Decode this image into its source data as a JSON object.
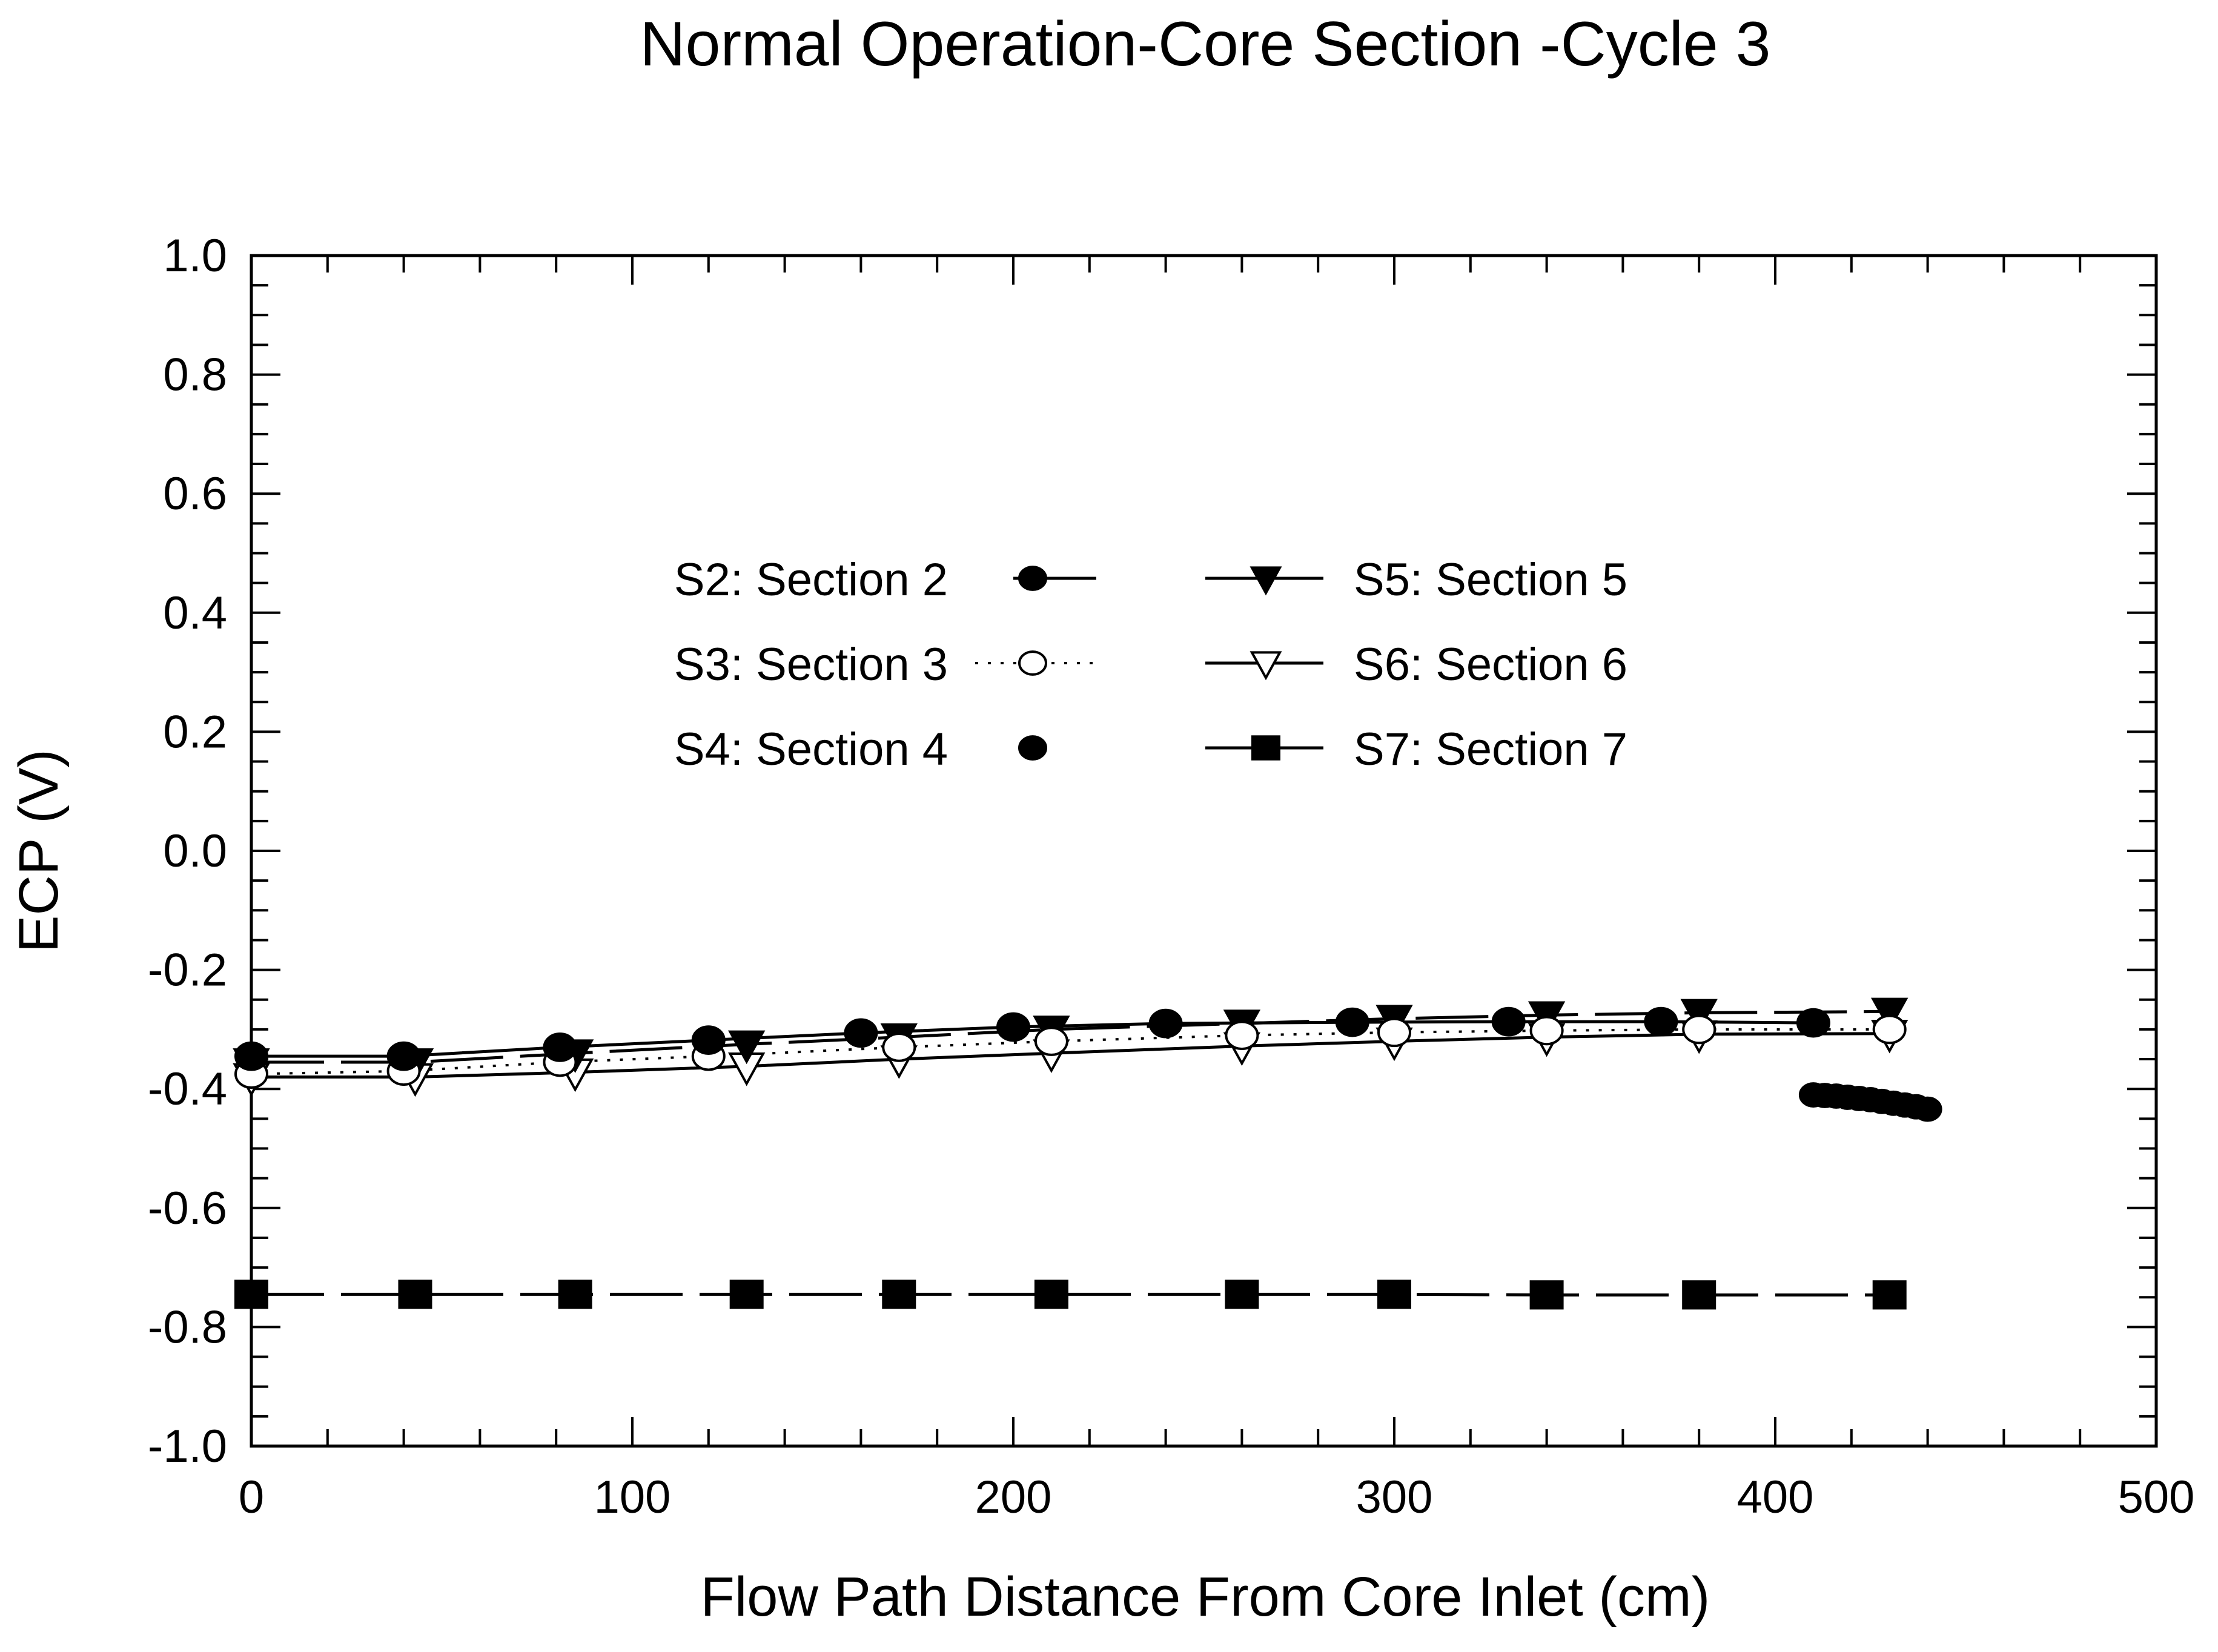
{
  "chart_data": {
    "type": "line",
    "title": "Normal Operation-Core Section -Cycle 3",
    "xlabel": "Flow Path Distance From Core Inlet (cm)",
    "ylabel": "ECP (V)",
    "xlim": [
      0,
      500
    ],
    "ylim": [
      -1.0,
      1.0
    ],
    "xticks": [
      0,
      100,
      200,
      300,
      400,
      500
    ],
    "xtick_labels": [
      "0",
      "100",
      "200",
      "300",
      "400",
      "500"
    ],
    "yticks": [
      1.0,
      0.8,
      0.6,
      0.4,
      0.2,
      0.0,
      -0.2,
      -0.4,
      -0.6,
      -0.8,
      -1.0
    ],
    "ytick_labels": [
      "1.0",
      "0.8",
      "0.6",
      "0.4",
      "0.2",
      "0.0",
      "-0.2",
      "-0.4",
      "-0.6",
      "-0.8",
      "-1.0"
    ],
    "grid": false,
    "legend_position": "upper-center",
    "series": [
      {
        "name": "S2: Section 2",
        "line": "solid",
        "marker": "circle",
        "filled": true,
        "x": [
          0,
          40,
          81,
          120,
          160,
          200,
          240,
          289,
          330,
          370,
          410
        ],
        "y": [
          -0.345,
          -0.345,
          -0.33,
          -0.318,
          -0.306,
          -0.296,
          -0.29,
          -0.288,
          -0.287,
          -0.287,
          -0.289
        ]
      },
      {
        "name": "S3: Section 3",
        "line": "dotted",
        "marker": "circle",
        "filled": false,
        "x": [
          0,
          40,
          81,
          120,
          170,
          210,
          260,
          300,
          340,
          380,
          430
        ],
        "y": [
          -0.375,
          -0.37,
          -0.355,
          -0.345,
          -0.33,
          -0.32,
          -0.31,
          -0.305,
          -0.302,
          -0.3,
          -0.3
        ]
      },
      {
        "name": "S4: Section 4",
        "line": "none",
        "marker": "circle",
        "filled": true,
        "x": [
          410,
          413,
          416,
          419,
          422,
          425,
          428,
          431,
          434,
          437,
          440
        ],
        "y": [
          -0.41,
          -0.411,
          -0.412,
          -0.414,
          -0.416,
          -0.418,
          -0.421,
          -0.424,
          -0.427,
          -0.43,
          -0.434
        ]
      },
      {
        "name": "S5: Section 5",
        "line": "dashed",
        "marker": "triangle-down",
        "filled": true,
        "x": [
          0,
          43,
          85,
          130,
          170,
          210,
          260,
          300,
          340,
          380,
          430
        ],
        "y": [
          -0.355,
          -0.355,
          -0.34,
          -0.325,
          -0.313,
          -0.3,
          -0.29,
          -0.282,
          -0.276,
          -0.272,
          -0.27
        ]
      },
      {
        "name": "S6: Section 6",
        "line": "solid",
        "marker": "triangle-down",
        "filled": false,
        "x": [
          0,
          43,
          85,
          130,
          170,
          210,
          260,
          300,
          340,
          380,
          430
        ],
        "y": [
          -0.38,
          -0.38,
          -0.372,
          -0.362,
          -0.35,
          -0.34,
          -0.328,
          -0.32,
          -0.313,
          -0.308,
          -0.307
        ]
      },
      {
        "name": "S7: Section 7",
        "line": "dashed",
        "marker": "square",
        "filled": true,
        "x": [
          0,
          43,
          85,
          130,
          170,
          210,
          260,
          300,
          340,
          380,
          430
        ],
        "y": [
          -0.745,
          -0.745,
          -0.745,
          -0.745,
          -0.745,
          -0.745,
          -0.745,
          -0.745,
          -0.746,
          -0.746,
          -0.746
        ]
      }
    ]
  }
}
